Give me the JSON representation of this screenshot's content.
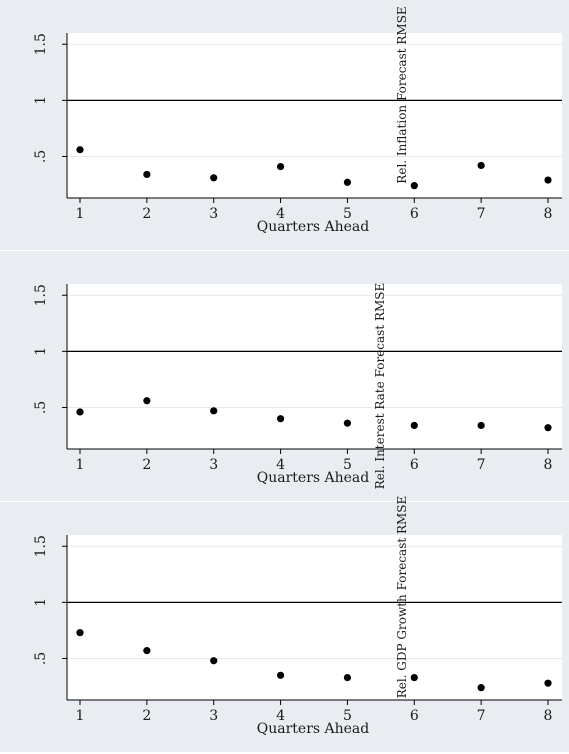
{
  "colors": {
    "panel_background": "#e9edf1",
    "plot_background": "#ffffff",
    "gridline": "#e4e9ee",
    "reference_line": "#000000",
    "marker": "#000000"
  },
  "chart_data": [
    {
      "type": "scatter",
      "xlabel": "Quarters Ahead",
      "ylabel": "Rel. Inflation Forecast RMSE",
      "x": [
        1,
        2,
        3,
        4,
        5,
        6,
        7,
        8
      ],
      "y": [
        0.56,
        0.34,
        0.31,
        0.41,
        0.27,
        0.24,
        0.42,
        0.29
      ],
      "xticks": [
        "1",
        "2",
        "3",
        "4",
        "5",
        "6",
        "7",
        "8"
      ],
      "yticks": [
        ".5",
        "1",
        "1.5"
      ],
      "xlim": [
        0.8,
        8.2
      ],
      "ylim": [
        0.13,
        1.6
      ],
      "reference_line": 1,
      "grid": true
    },
    {
      "type": "scatter",
      "xlabel": "Quarters Ahead",
      "ylabel": "Rel. Interest Rate Forecast RMSE",
      "x": [
        1,
        2,
        3,
        4,
        5,
        6,
        7,
        8
      ],
      "y": [
        0.46,
        0.56,
        0.47,
        0.4,
        0.36,
        0.34,
        0.34,
        0.32
      ],
      "xticks": [
        "1",
        "2",
        "3",
        "4",
        "5",
        "6",
        "7",
        "8"
      ],
      "yticks": [
        ".5",
        "1",
        "1.5"
      ],
      "xlim": [
        0.8,
        8.2
      ],
      "ylim": [
        0.13,
        1.6
      ],
      "reference_line": 1,
      "grid": true
    },
    {
      "type": "scatter",
      "xlabel": "Quarters Ahead",
      "ylabel": "Rel. GDP Growth Forecast RMSE",
      "x": [
        1,
        2,
        3,
        4,
        5,
        6,
        7,
        8
      ],
      "y": [
        0.73,
        0.57,
        0.48,
        0.35,
        0.33,
        0.33,
        0.24,
        0.28
      ],
      "xticks": [
        "1",
        "2",
        "3",
        "4",
        "5",
        "6",
        "7",
        "8"
      ],
      "yticks": [
        ".5",
        "1",
        "1.5"
      ],
      "xlim": [
        0.8,
        8.2
      ],
      "ylim": [
        0.13,
        1.6
      ],
      "reference_line": 1,
      "grid": true
    }
  ]
}
